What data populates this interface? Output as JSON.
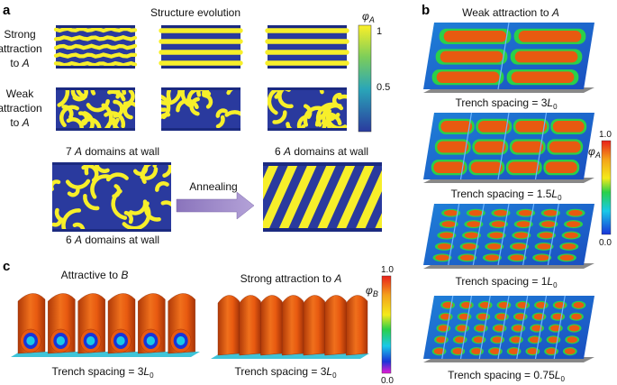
{
  "panel_labels": {
    "a": "a",
    "b": "b",
    "c": "c"
  },
  "panel_a": {
    "title": "Structure evolution",
    "row1": [
      "Strong",
      "attraction",
      "to "
    ],
    "row2": [
      "Weak",
      "attraction",
      "to "
    ],
    "A": "A",
    "colorbar": {
      "symbol": "φ",
      "sub": "A",
      "ticks": [
        "1",
        "0.5"
      ]
    },
    "left_top": {
      "count": "7 ",
      "A": "A",
      "rest": " domains at wall"
    },
    "left_bottom": {
      "count": "6 ",
      "A": "A",
      "rest": " domains at wall"
    },
    "right_top": {
      "count": "6 ",
      "A": "A",
      "rest": " domains at wall"
    },
    "arrow_label": "Annealing"
  },
  "panel_b": {
    "title": "Weak attraction to ",
    "A": "A",
    "prefix": "Trench spacing = ",
    "L": "L",
    "L_sub": "0",
    "spacings": [
      "3",
      "1.5",
      "1",
      "0.75"
    ],
    "colorbar": {
      "symbol": "φ",
      "sub": "A",
      "max": "1.0",
      "min": "0.0"
    }
  },
  "panel_c": {
    "left_title": "Attractive to ",
    "left_B": "B",
    "right_title": "Strong attraction to ",
    "right_A": "A",
    "prefix": "Trench spacing = ",
    "spacing": "3",
    "L": "L",
    "L_sub": "0",
    "colorbar": {
      "symbol": "φ",
      "sub": "B",
      "max": "1.0",
      "min": "0.0"
    }
  },
  "colors": {
    "blue": "#2a3a9e",
    "yellow": "#f7ef2a",
    "orange": "#e85a10",
    "arrow": "#9a82c4"
  }
}
